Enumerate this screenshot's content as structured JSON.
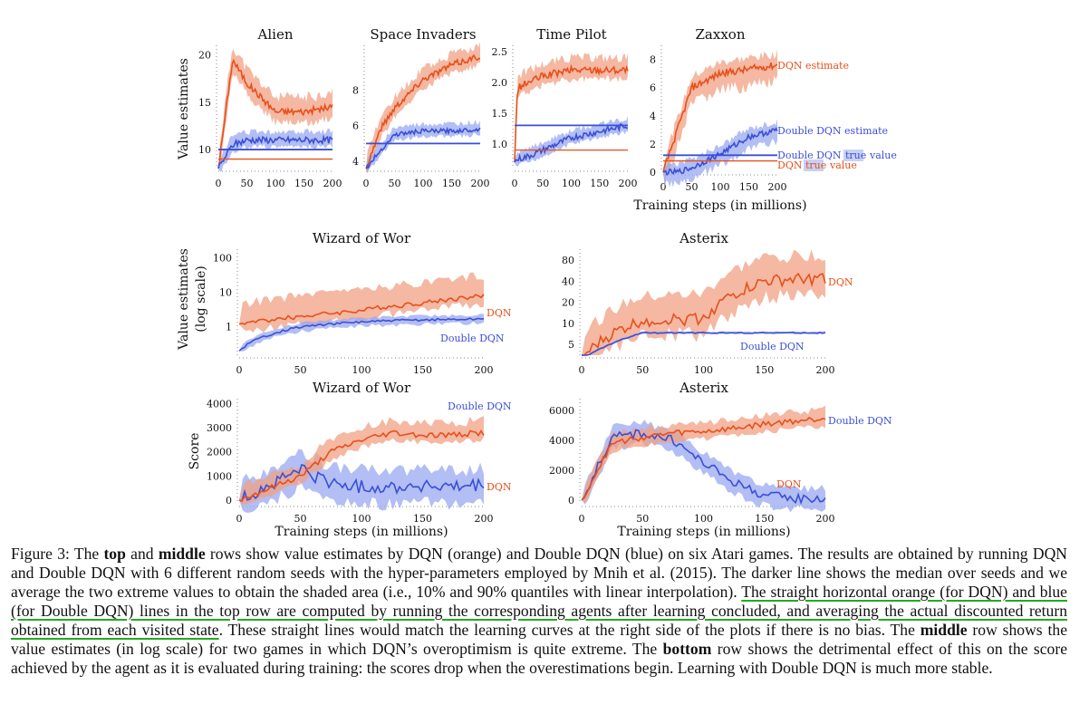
{
  "figure": {
    "colors": {
      "dqn": "#e8501a",
      "ddqn": "#3a4fd6",
      "dqn_band": "#f0a084",
      "ddqn_band": "#98a8f0"
    },
    "labels": {
      "value_estimates": "Value estimates",
      "value_estimates_log_1": "Value estimates",
      "value_estimates_log_2": "(log scale)",
      "score": "Score",
      "training_steps": "Training steps (in millions)"
    }
  },
  "chart_data": [
    {
      "type": "line",
      "title": "Alien",
      "ylabel": "Value estimates",
      "x": [
        0,
        25,
        50,
        100,
        150,
        200
      ],
      "xticks": [
        "0",
        "50",
        "100",
        "150",
        "200"
      ],
      "yticks": [
        "10",
        "15",
        "20"
      ],
      "ylim": [
        8,
        21
      ],
      "series": [
        {
          "values": [
            8,
            19.5,
            17,
            14,
            14,
            14.5
          ]
        },
        {
          "values": [
            8,
            10.5,
            11,
            11,
            11,
            11
          ]
        }
      ],
      "reference": {
        "dqn": 9,
        "ddqn": 10
      }
    },
    {
      "type": "line",
      "title": "Space Invaders",
      "x": [
        0,
        25,
        50,
        100,
        150,
        200
      ],
      "xticks": [
        "0",
        "50",
        "100",
        "150",
        "200"
      ],
      "yticks": [
        "4",
        "6",
        "8"
      ],
      "ylim": [
        3.6,
        10.5
      ],
      "series": [
        {
          "values": [
            3.6,
            5.8,
            7,
            8.6,
            9.4,
            9.9
          ]
        },
        {
          "values": [
            3.6,
            4.6,
            5.5,
            5.7,
            5.7,
            5.8
          ]
        }
      ],
      "reference": {
        "ddqn": 5
      }
    },
    {
      "type": "line",
      "title": "Time Pilot",
      "x": [
        0,
        5,
        25,
        50,
        100,
        150,
        200
      ],
      "xticks": [
        "0",
        "50",
        "100",
        "150",
        "200"
      ],
      "yticks": [
        "1.0",
        "1.5",
        "2.0",
        "2.5"
      ],
      "ylim": [
        0.6,
        2.6
      ],
      "series": [
        {
          "values": [
            0.7,
            1.9,
            2.0,
            2.1,
            2.2,
            2.2,
            2.2
          ]
        },
        {
          "values": [
            0.7,
            0.75,
            0.8,
            0.9,
            1.1,
            1.2,
            1.3
          ]
        }
      ],
      "reference": {
        "dqn": 0.9,
        "ddqn": 1.3
      }
    },
    {
      "type": "line",
      "title": "Zaxxon",
      "x": [
        0,
        25,
        50,
        100,
        150,
        200
      ],
      "xticks": [
        "0",
        "50",
        "100",
        "150",
        "200"
      ],
      "yticks": [
        "0",
        "2",
        "4",
        "6",
        "8"
      ],
      "ylim": [
        0,
        9
      ],
      "series": [
        {
          "name": "DQN estimate",
          "values": [
            0,
            3,
            6,
            7,
            7.3,
            7.6
          ]
        },
        {
          "name": "Double DQN estimate",
          "values": [
            0,
            0,
            0.3,
            1.3,
            2.5,
            3
          ]
        }
      ],
      "reference": {
        "dqn": 0.8,
        "ddqn": 1.2
      },
      "annotations": [
        "DQN estimate",
        "Double DQN estimate",
        "Double DQN",
        "true",
        "value",
        "DQN",
        "true",
        "value"
      ],
      "xlabel": "Training steps (in millions)"
    },
    {
      "type": "line",
      "title": "Wizard of Wor",
      "ylabel": "Value estimates (log scale)",
      "x": [
        0,
        50,
        100,
        150,
        200
      ],
      "xticks": [
        "0",
        "50",
        "100",
        "150",
        "200"
      ],
      "yticks": [
        "1",
        "10",
        "100"
      ],
      "log_y": true,
      "series": [
        {
          "name": "DQN",
          "values": [
            1.2,
            2,
            3,
            5,
            8
          ]
        },
        {
          "name": "Double DQN",
          "values": [
            0.2,
            1,
            1.4,
            1.6,
            1.7
          ]
        }
      ]
    },
    {
      "type": "line",
      "title": "Asterix",
      "x": [
        0,
        50,
        100,
        150,
        200
      ],
      "xticks": [
        "0",
        "50",
        "100",
        "150",
        "200"
      ],
      "yticks": [
        "5",
        "10",
        "20",
        "40",
        "80"
      ],
      "log_y": true,
      "series": [
        {
          "name": "DQN",
          "values": [
            3,
            11,
            12,
            40,
            45
          ]
        },
        {
          "name": "Double DQN",
          "values": [
            3,
            7.3,
            7.3,
            7.3,
            7.3
          ]
        }
      ]
    },
    {
      "type": "line",
      "ylabel": "Score",
      "title": "Wizard of Wor",
      "x": [
        0,
        25,
        50,
        75,
        100,
        125,
        150,
        175,
        200
      ],
      "xticks": [
        "0",
        "50",
        "100",
        "150",
        "200"
      ],
      "yticks": [
        "0",
        "1000",
        "2000",
        "3000",
        "4000"
      ],
      "ylim": [
        0,
        4200
      ],
      "series": [
        {
          "name": "Double DQN",
          "values": [
            0,
            500,
            1000,
            2000,
            2500,
            2800,
            2700,
            2700,
            2800
          ]
        },
        {
          "name": "DQN",
          "values": [
            0,
            600,
            1300,
            700,
            550,
            550,
            600,
            500,
            600
          ]
        }
      ],
      "xlabel": "Training steps (in millions)"
    },
    {
      "type": "line",
      "title": "Asterix",
      "x": [
        0,
        25,
        50,
        75,
        100,
        125,
        150,
        175,
        200
      ],
      "xticks": [
        "0",
        "50",
        "100",
        "150",
        "200"
      ],
      "yticks": [
        "0",
        "2000",
        "4000",
        "6000"
      ],
      "ylim": [
        0,
        6800
      ],
      "series": [
        {
          "name": "Double DQN",
          "values": [
            0,
            3800,
            4200,
            4500,
            4600,
            4800,
            5100,
            5300,
            5500
          ]
        },
        {
          "name": "DQN",
          "values": [
            0,
            4200,
            4500,
            4000,
            2500,
            1200,
            300,
            100,
            100
          ]
        }
      ],
      "xlabel": "Training steps (in millions)"
    }
  ],
  "caption": {
    "fig_label": "Figure 3:",
    "t1": " The ",
    "b1": "top",
    "t2": " and ",
    "b2": "middle",
    "t3": " rows show value estimates by DQN (orange) and Double DQN (blue) on six Atari games. The results are obtained by running DQN and Double DQN with 6 different random seeds with the hyper-parameters employed by Mnih et al. (2015). The darker line shows the median over seeds and we average the two extreme values to obtain the shaded area (i.e., 10% and 90% quantiles with linear interpolation). ",
    "u1": "The straight horizontal orange (for DQN) and blue (for Double DQN) lines in the top row are computed by running the corresponding agents after learning concluded, and averaging the actual discounted return obtained from each visited state",
    "t4": ". These straight lines would match the learning curves at the right side of the plots if there is no bias. The ",
    "b3": "middle",
    "t5": " row shows the value estimates (in log scale) for two games in which DQN’s overoptimism is quite extreme. The ",
    "b4": "bottom",
    "t6": " row shows the detrimental effect of this on the score achieved by the agent as it is evaluated during training: the scores drop when the overestimations begin. Learning with Double DQN is much more stable."
  }
}
